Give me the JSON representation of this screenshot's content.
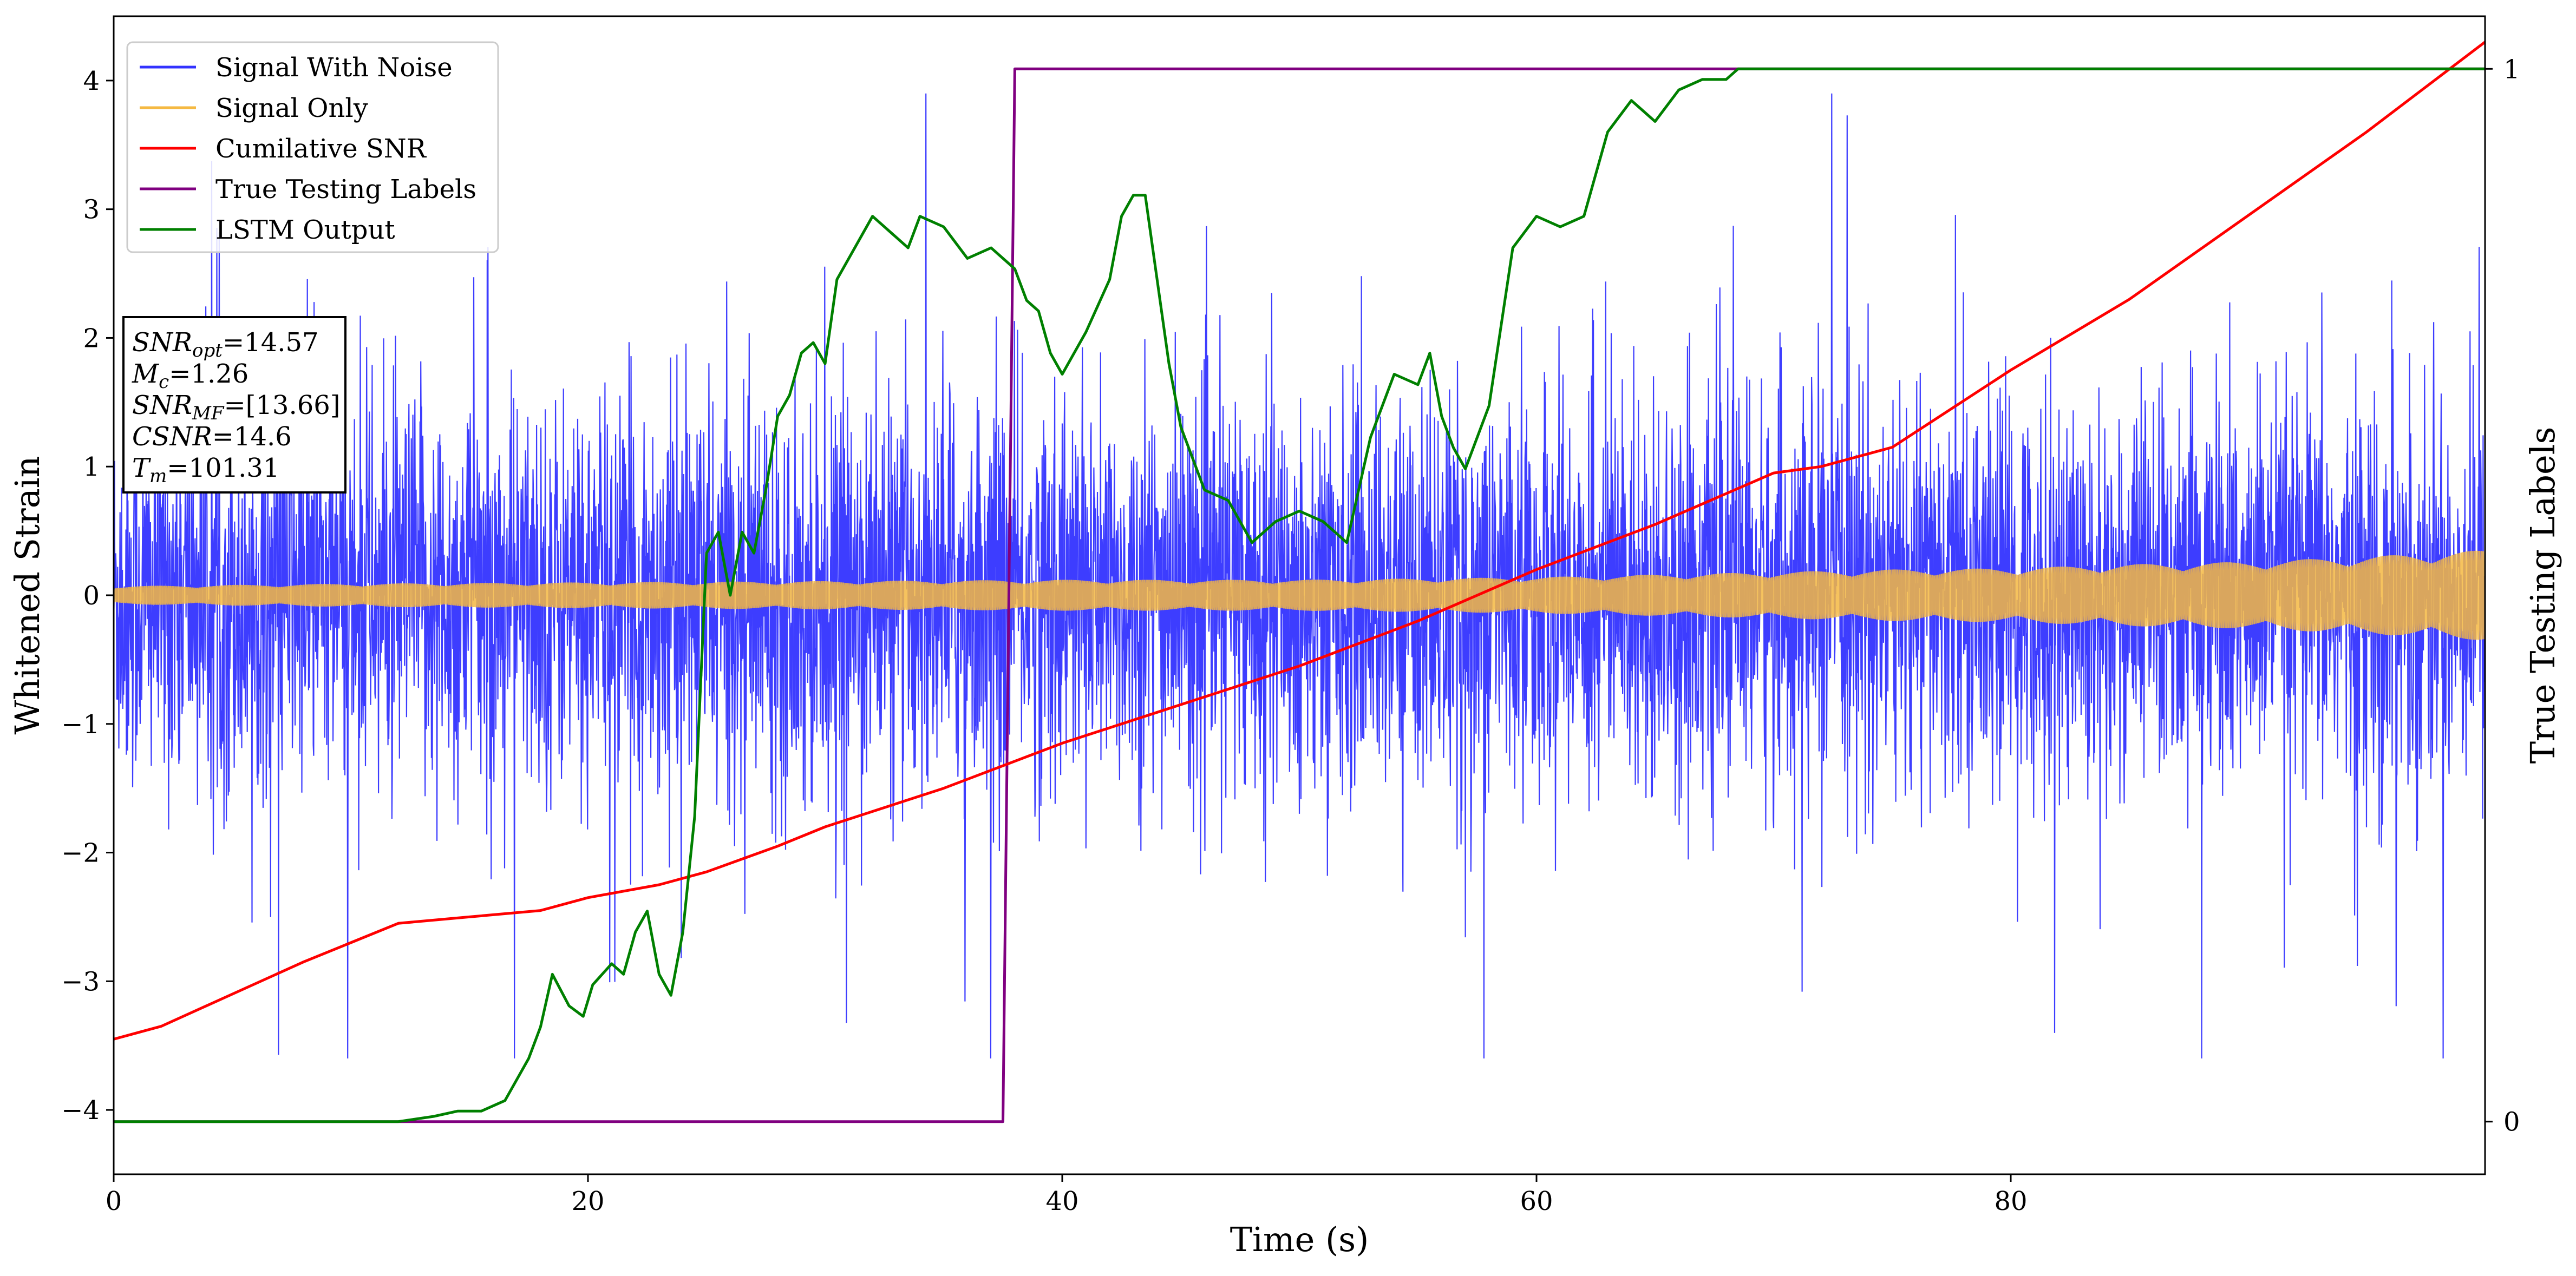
{
  "chart_data": {
    "type": "line",
    "title": "",
    "xlabel": "Time (s)",
    "ylabel": "Whitened Strain",
    "y2label": "True Testing Labels",
    "xlim": [
      0,
      100
    ],
    "ylim": [
      -4.5,
      4.5
    ],
    "y2lim": [
      -0.05,
      1.05
    ],
    "xticks": [
      0,
      20,
      40,
      60,
      80
    ],
    "yticks": [
      -4,
      -3,
      -2,
      -1,
      0,
      1,
      2,
      3,
      4
    ],
    "y2ticks": [
      0,
      1
    ],
    "grid": false,
    "legend_position": "top-left",
    "series": [
      {
        "name": "Signal With Noise",
        "axis": "left",
        "color": "#3333ff",
        "kind": "noise",
        "description_values": {
          "typical_abs_peak": 2.0,
          "max": 3.9,
          "min": -3.6
        }
      },
      {
        "name": "Signal Only",
        "axis": "left",
        "color": "#f5b942",
        "kind": "envelope",
        "x": [
          0,
          5,
          10,
          20,
          30,
          40,
          50,
          60,
          65,
          70,
          75,
          80,
          85,
          90,
          95,
          100
        ],
        "amplitude": [
          0.07,
          0.08,
          0.09,
          0.1,
          0.11,
          0.12,
          0.12,
          0.14,
          0.16,
          0.18,
          0.2,
          0.21,
          0.24,
          0.26,
          0.3,
          0.35
        ]
      },
      {
        "name": "Cumilative SNR",
        "axis": "left",
        "color": "#ff0000",
        "x": [
          0,
          2,
          5,
          8,
          10,
          12,
          15,
          18,
          20,
          23,
          25,
          28,
          30,
          35,
          40,
          45,
          50,
          55,
          60,
          65,
          70,
          72,
          75,
          80,
          85,
          90,
          95,
          100
        ],
        "y": [
          -3.45,
          -3.35,
          -3.1,
          -2.85,
          -2.7,
          -2.55,
          -2.5,
          -2.45,
          -2.35,
          -2.25,
          -2.15,
          -1.95,
          -1.8,
          -1.5,
          -1.15,
          -0.85,
          -0.55,
          -0.2,
          0.2,
          0.55,
          0.95,
          1.0,
          1.15,
          1.75,
          2.3,
          2.95,
          3.6,
          4.3
        ]
      },
      {
        "name": "True Testing Labels",
        "axis": "right",
        "color": "#800080",
        "x": [
          0,
          37.5,
          38.0,
          100
        ],
        "y": [
          0,
          0,
          1,
          1
        ]
      },
      {
        "name": "LSTM Output",
        "axis": "right",
        "color": "#008000",
        "x": [
          0,
          12,
          13.5,
          14.5,
          15.5,
          16.5,
          17.5,
          18,
          18.5,
          19.2,
          19.8,
          20.2,
          21,
          21.5,
          22,
          22.5,
          23,
          23.5,
          24,
          24.5,
          25,
          25.5,
          26,
          26.5,
          27,
          27.5,
          28,
          28.5,
          29,
          29.5,
          30,
          30.5,
          31,
          32,
          33,
          33.5,
          34,
          35,
          36,
          37,
          38,
          38.5,
          39,
          39.5,
          40,
          41,
          42,
          42.5,
          43,
          43.5,
          44,
          44.5,
          45,
          46,
          47,
          48,
          49,
          50,
          51,
          52,
          53,
          54,
          55,
          55.5,
          56,
          56.5,
          57,
          58,
          59,
          60,
          61,
          62,
          63,
          64,
          65,
          66,
          67,
          68,
          68.5,
          69,
          70,
          72,
          75,
          80,
          90,
          100
        ],
        "y": [
          0,
          0,
          0.005,
          0.01,
          0.01,
          0.02,
          0.06,
          0.09,
          0.14,
          0.11,
          0.1,
          0.13,
          0.15,
          0.14,
          0.18,
          0.2,
          0.14,
          0.12,
          0.18,
          0.29,
          0.54,
          0.56,
          0.5,
          0.56,
          0.54,
          0.6,
          0.67,
          0.69,
          0.73,
          0.74,
          0.72,
          0.8,
          0.82,
          0.86,
          0.84,
          0.83,
          0.86,
          0.85,
          0.82,
          0.83,
          0.81,
          0.78,
          0.77,
          0.73,
          0.71,
          0.75,
          0.8,
          0.86,
          0.88,
          0.88,
          0.8,
          0.72,
          0.66,
          0.6,
          0.59,
          0.55,
          0.57,
          0.58,
          0.57,
          0.55,
          0.65,
          0.71,
          0.7,
          0.73,
          0.67,
          0.64,
          0.62,
          0.68,
          0.83,
          0.86,
          0.85,
          0.86,
          0.94,
          0.97,
          0.95,
          0.98,
          0.99,
          0.99,
          1.0,
          1.0,
          1.0,
          1.0,
          1.0,
          1.0,
          1.0,
          1.0
        ]
      }
    ],
    "legend": [
      {
        "label": "Signal With Noise",
        "color": "#3333ff"
      },
      {
        "label": "Signal Only",
        "color": "#f5b942"
      },
      {
        "label": "Cumilative SNR",
        "color": "#ff0000"
      },
      {
        "label": "True Testing Labels",
        "color": "#800080"
      },
      {
        "label": "LSTM Output",
        "color": "#008000"
      }
    ],
    "annotation": {
      "lines": [
        {
          "base": "SNR",
          "sub": "opt",
          "value": "=14.57"
        },
        {
          "base": "M",
          "sub": "c",
          "value": "=1.26"
        },
        {
          "base": "SNR",
          "sub": "MF",
          "value": "=[13.66]"
        },
        {
          "base": "CSNR",
          "sub": "",
          "value": "=14.6"
        },
        {
          "base": "T",
          "sub": "m",
          "value": "=101.31"
        }
      ]
    }
  }
}
